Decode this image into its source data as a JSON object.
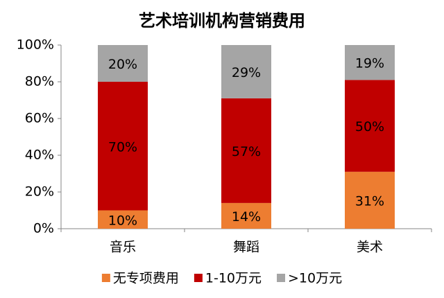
{
  "chart_data": {
    "type": "stacked-bar",
    "title": "艺术培训机构营销费用",
    "categories": [
      "音乐",
      "舞蹈",
      "美术"
    ],
    "series": [
      {
        "name": "无专项费用",
        "color": "#ED7D31",
        "values": [
          10,
          14,
          31
        ],
        "value_labels": [
          "10%",
          "14%",
          "31%"
        ]
      },
      {
        "name": "1-10万元",
        "color": "#C00000",
        "values": [
          70,
          57,
          50
        ],
        "value_labels": [
          "70%",
          "57%",
          "50%"
        ]
      },
      {
        "name": ">10万元",
        "color": "#A5A5A5",
        "values": [
          20,
          29,
          19
        ],
        "value_labels": [
          "20%",
          "29%",
          "19%"
        ]
      }
    ],
    "ylim": [
      0,
      100
    ],
    "yticks": [
      {
        "value": 0,
        "label": "0%"
      },
      {
        "value": 20,
        "label": "20%"
      },
      {
        "value": 40,
        "label": "40%"
      },
      {
        "value": 60,
        "label": "60%"
      },
      {
        "value": 80,
        "label": "80%"
      },
      {
        "value": 100,
        "label": "100%"
      }
    ],
    "legend": "bottom"
  }
}
